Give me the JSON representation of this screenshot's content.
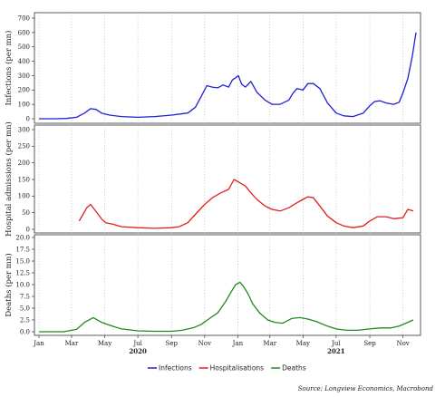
{
  "chart_data": {
    "type": "line",
    "x_axis": {
      "month_labels": [
        "Jan",
        "Mar",
        "May",
        "Jul",
        "Sep",
        "Nov",
        "Jan",
        "Mar",
        "May",
        "Jul",
        "Sep",
        "Nov"
      ],
      "month_label_dates": [
        "2020-01",
        "2020-03",
        "2020-05",
        "2020-07",
        "2020-09",
        "2020-11",
        "2021-01",
        "2021-03",
        "2021-05",
        "2021-07",
        "2021-09",
        "2021-11"
      ],
      "year_labels": [
        "2020",
        "2021"
      ],
      "year_label_dates": [
        "2020-07",
        "2021-07"
      ],
      "range": [
        "2020-01",
        "2021-11-25"
      ]
    },
    "grid": "vertical dotted lines at each labelled month",
    "panels": [
      {
        "ylabel": "Infections (per mn)",
        "ylim": [
          0,
          700
        ],
        "yticks": [
          0,
          100,
          200,
          300,
          400,
          500,
          600,
          700
        ],
        "series": [
          {
            "name": "Infections",
            "color": "#1f1fd6",
            "x": [
              "2020-01-01",
              "2020-02-01",
              "2020-02-20",
              "2020-03-10",
              "2020-03-25",
              "2020-04-05",
              "2020-04-15",
              "2020-04-25",
              "2020-05-10",
              "2020-06-01",
              "2020-07-01",
              "2020-08-01",
              "2020-09-01",
              "2020-10-01",
              "2020-10-15",
              "2020-10-25",
              "2020-11-05",
              "2020-11-15",
              "2020-11-25",
              "2020-12-05",
              "2020-12-15",
              "2020-12-22",
              "2020-12-28",
              "2021-01-02",
              "2021-01-08",
              "2021-01-15",
              "2021-01-25",
              "2021-02-05",
              "2021-02-20",
              "2021-03-05",
              "2021-03-20",
              "2021-04-05",
              "2021-04-12",
              "2021-04-20",
              "2021-05-01",
              "2021-05-10",
              "2021-05-20",
              "2021-06-01",
              "2021-06-15",
              "2021-07-01",
              "2021-07-15",
              "2021-08-01",
              "2021-08-20",
              "2021-09-01",
              "2021-09-10",
              "2021-09-20",
              "2021-10-01",
              "2021-10-15",
              "2021-10-25",
              "2021-11-01",
              "2021-11-10",
              "2021-11-18",
              "2021-11-25"
            ],
            "values": [
              0,
              0,
              2,
              10,
              40,
              70,
              65,
              40,
              25,
              15,
              10,
              15,
              25,
              40,
              80,
              150,
              230,
              220,
              215,
              235,
              220,
              270,
              285,
              300,
              240,
              220,
              260,
              185,
              130,
              100,
              100,
              130,
              175,
              210,
              200,
              245,
              245,
              210,
              110,
              40,
              20,
              15,
              40,
              90,
              120,
              125,
              110,
              100,
              115,
              180,
              280,
              430,
              600
            ]
          }
        ]
      },
      {
        "ylabel": "Hospital admissions (per mn)",
        "ylim": [
          0,
          300
        ],
        "yticks": [
          0,
          50,
          100,
          150,
          200,
          250,
          300
        ],
        "series": [
          {
            "name": "Hospitalisations",
            "color": "#e02020",
            "x": [
              "2020-03-15",
              "2020-03-22",
              "2020-03-29",
              "2020-04-05",
              "2020-04-12",
              "2020-04-19",
              "2020-04-26",
              "2020-05-03",
              "2020-05-17",
              "2020-06-01",
              "2020-07-01",
              "2020-08-01",
              "2020-09-01",
              "2020-09-15",
              "2020-10-01",
              "2020-10-15",
              "2020-11-01",
              "2020-11-15",
              "2020-12-01",
              "2020-12-15",
              "2020-12-25",
              "2021-01-05",
              "2021-01-15",
              "2021-01-25",
              "2021-02-05",
              "2021-02-20",
              "2021-03-05",
              "2021-03-20",
              "2021-04-05",
              "2021-04-20",
              "2021-05-01",
              "2021-05-10",
              "2021-05-20",
              "2021-06-01",
              "2021-06-15",
              "2021-07-01",
              "2021-07-15",
              "2021-08-01",
              "2021-08-20",
              "2021-09-01",
              "2021-09-15",
              "2021-10-01",
              "2021-10-15",
              "2021-11-01",
              "2021-11-10",
              "2021-11-20"
            ],
            "values": [
              25,
              45,
              65,
              75,
              60,
              45,
              30,
              20,
              15,
              8,
              5,
              3,
              5,
              8,
              20,
              45,
              75,
              95,
              110,
              120,
              150,
              140,
              130,
              110,
              90,
              70,
              60,
              55,
              65,
              80,
              90,
              98,
              95,
              70,
              40,
              20,
              10,
              5,
              10,
              25,
              38,
              38,
              32,
              35,
              60,
              55
            ]
          }
        ]
      },
      {
        "ylabel": "Deaths (per mn)",
        "ylim": [
          0,
          20
        ],
        "yticks": [
          0.0,
          2.5,
          5.0,
          7.5,
          10.0,
          12.5,
          15.0,
          17.5,
          20.0
        ],
        "series": [
          {
            "name": "Deaths",
            "color": "#1f8a1f",
            "x": [
              "2020-01-01",
              "2020-02-15",
              "2020-03-10",
              "2020-03-25",
              "2020-04-10",
              "2020-04-25",
              "2020-05-15",
              "2020-06-01",
              "2020-07-01",
              "2020-08-01",
              "2020-09-01",
              "2020-09-20",
              "2020-10-10",
              "2020-10-25",
              "2020-11-10",
              "2020-11-25",
              "2020-12-10",
              "2020-12-20",
              "2020-12-28",
              "2021-01-05",
              "2021-01-12",
              "2021-01-20",
              "2021-01-28",
              "2021-02-10",
              "2021-02-25",
              "2021-03-10",
              "2021-03-25",
              "2021-04-10",
              "2021-04-25",
              "2021-05-10",
              "2021-05-25",
              "2021-06-15",
              "2021-07-01",
              "2021-07-20",
              "2021-08-10",
              "2021-09-01",
              "2021-09-20",
              "2021-10-10",
              "2021-10-25",
              "2021-11-10",
              "2021-11-20"
            ],
            "values": [
              0,
              0,
              0.5,
              2.0,
              3.0,
              2.0,
              1.2,
              0.6,
              0.2,
              0.1,
              0.1,
              0.3,
              0.8,
              1.5,
              2.8,
              4.0,
              6.5,
              8.5,
              10.0,
              10.5,
              9.5,
              8.0,
              6.0,
              4.0,
              2.5,
              2.0,
              1.8,
              2.8,
              3.0,
              2.7,
              2.2,
              1.2,
              0.6,
              0.3,
              0.3,
              0.6,
              0.8,
              0.8,
              1.2,
              2.0,
              2.5
            ]
          }
        ]
      }
    ],
    "legend": {
      "placement": "bottom-center",
      "items": [
        {
          "label": "Infections",
          "color": "#1f1fd6"
        },
        {
          "label": "Hospitalisations",
          "color": "#e02020"
        },
        {
          "label": "Deaths",
          "color": "#1f8a1f"
        }
      ]
    },
    "source": "Source: Longview Economics, Macrobond"
  }
}
